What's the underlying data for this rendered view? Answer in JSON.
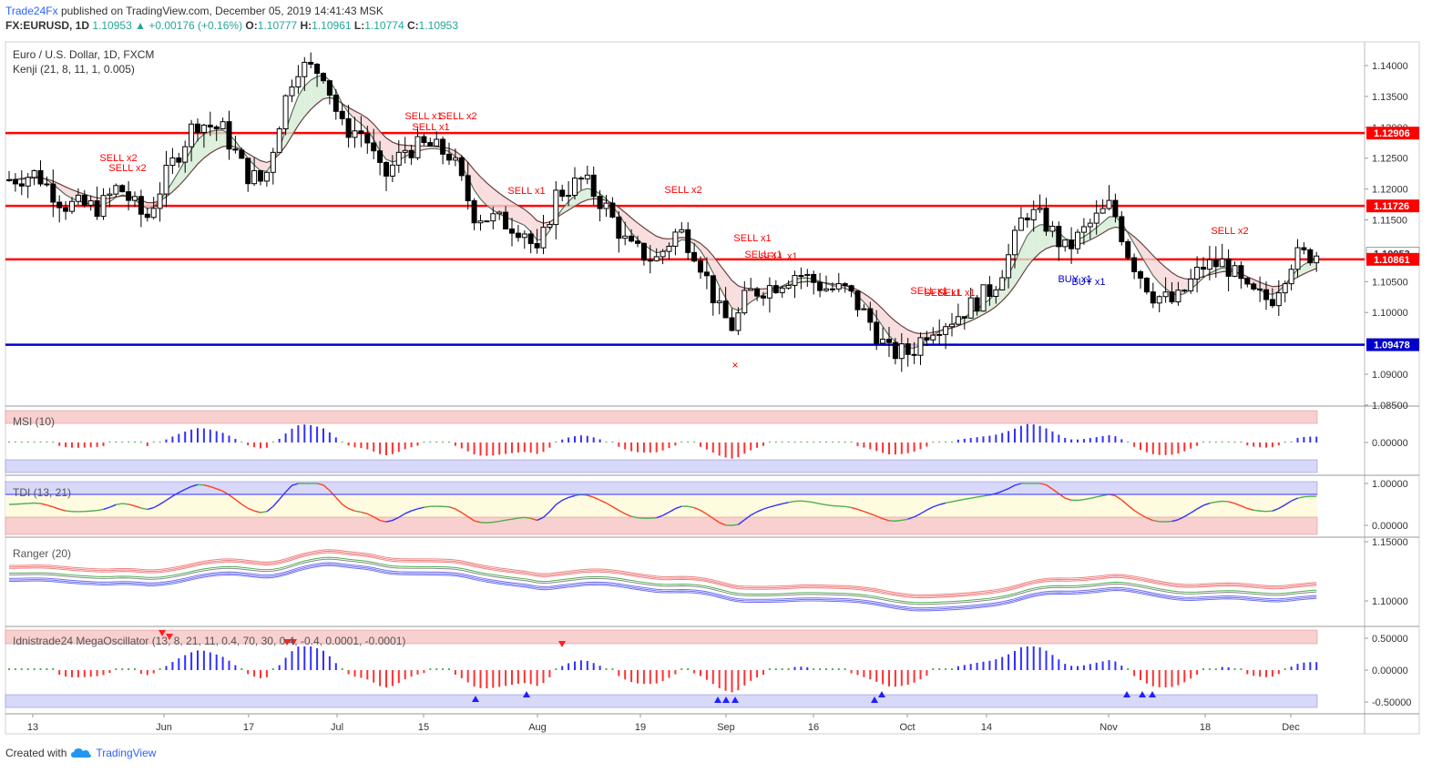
{
  "header": {
    "publisher": "Trade24Fx",
    "published_text": "published on TradingView.com, December 05, 2019 14:41:43 MSK",
    "symbol": "FX:EURUSD, 1D",
    "last": "1.10953",
    "change": "+0.00176 (+0.16%)",
    "o_label": "O:",
    "o": "1.10777",
    "h_label": "H:",
    "h": "1.10961",
    "l_label": "L:",
    "l": "1.10774",
    "c_label": "C:",
    "c": "1.10953"
  },
  "main_pane": {
    "title": "Euro / U.S. Dollar, 1D, FXCM",
    "indicator": "Kenji (21, 8, 11, 1, 0.005)",
    "price_ticks": [
      "1.14000",
      "1.13500",
      "1.13000",
      "1.12500",
      "1.12000",
      "1.11500",
      "1.10500",
      "1.10000",
      "1.09000",
      "1.08500"
    ],
    "level_labels": [
      "1.12906",
      "1.11726",
      "1.10953",
      "1.10861",
      "1.09478"
    ],
    "signals": [
      "SELL x2",
      "SELL x2",
      "SELL x1",
      "SELL x2",
      "SELL x1",
      "SELL x1",
      "SELL x2",
      "SELL x1",
      "SELL x1",
      "SELL x1",
      "SELL x1",
      "SELL x1",
      "SELL x1",
      "SELL x2",
      "BUY x1",
      "BUY x1"
    ],
    "cross_mark": "×"
  },
  "msi_pane": {
    "title": "MSI (10)",
    "ticks": [
      "0.00000"
    ]
  },
  "tdi_pane": {
    "title": "TDI (13, 21)",
    "ticks": [
      "1.00000",
      "0.00000"
    ]
  },
  "ranger_pane": {
    "title": "Ranger (20)",
    "ticks": [
      "1.15000",
      "1.10000"
    ]
  },
  "mega_pane": {
    "title": "Idnistrade24 MegaOscillator (13, 8, 21, 11, 0.4, 70, 30, 0.4, -0.4, 0.0001, -0.0001)",
    "ticks": [
      "0.50000",
      "0.00000",
      "-0.50000"
    ]
  },
  "time_axis": [
    "13",
    "Jun",
    "17",
    "Jul",
    "15",
    "Aug",
    "19",
    "Sep",
    "16",
    "Oct",
    "14",
    "Nov",
    "18",
    "Dec"
  ],
  "footer": {
    "created": "Created with",
    "brand": "TradingView"
  },
  "colors": {
    "up": "#26a69a",
    "down": "#000000",
    "red_line": "#ff0000",
    "blue_line": "#0000cc",
    "label_red": "#ff0000",
    "label_blue": "#0000cc",
    "tdi_zone": "#fffbe0"
  }
}
